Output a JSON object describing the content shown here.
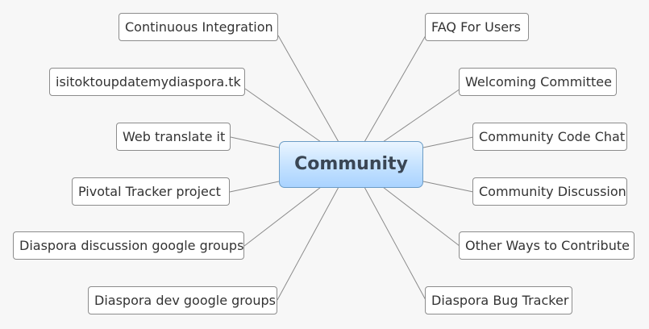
{
  "central_topic": "Community",
  "left_topics": [
    "Continuous Integration",
    "isitoktoupdatemydiaspora.tk",
    "Web translate it",
    "Pivotal Tracker project",
    "Diaspora discussion google groups",
    "Diaspora dev google groups"
  ],
  "right_topics": [
    "FAQ For Users",
    "Welcoming Committee",
    "Community Code Chat",
    "Community Discussion",
    "Other Ways to Contribute",
    "Diaspora Bug Tracker"
  ]
}
